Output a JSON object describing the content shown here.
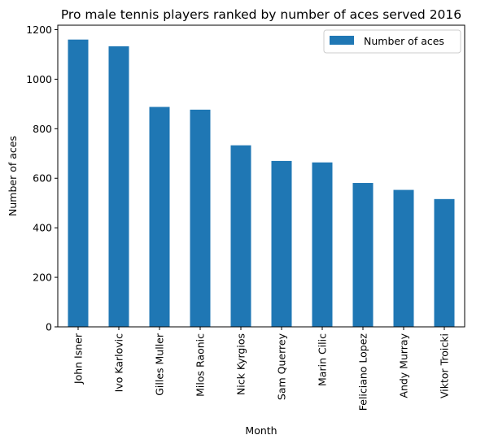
{
  "chart_data": {
    "type": "bar",
    "title": "Pro male tennis players ranked by number of aces served 2016",
    "xlabel": "Month",
    "ylabel": "Number of aces",
    "categories": [
      "John Isner",
      "Ivo Karlovic",
      "Gilles Muller",
      "Milos Raonic",
      "Nick Kyrgios",
      "Sam Querrey",
      "Marin Cilic",
      "Feliciano Lopez",
      "Andy Murray",
      "Viktor Troicki"
    ],
    "series": [
      {
        "name": "Number of aces",
        "color": "#1f77b4",
        "values": [
          1160,
          1133,
          888,
          877,
          733,
          670,
          664,
          581,
          553,
          516
        ]
      }
    ],
    "ylim": [
      0,
      1218
    ],
    "yticks": [
      "0",
      "200",
      "400",
      "600",
      "800",
      "1000",
      "1200"
    ],
    "legend_position": "top-right",
    "grid": false
  }
}
